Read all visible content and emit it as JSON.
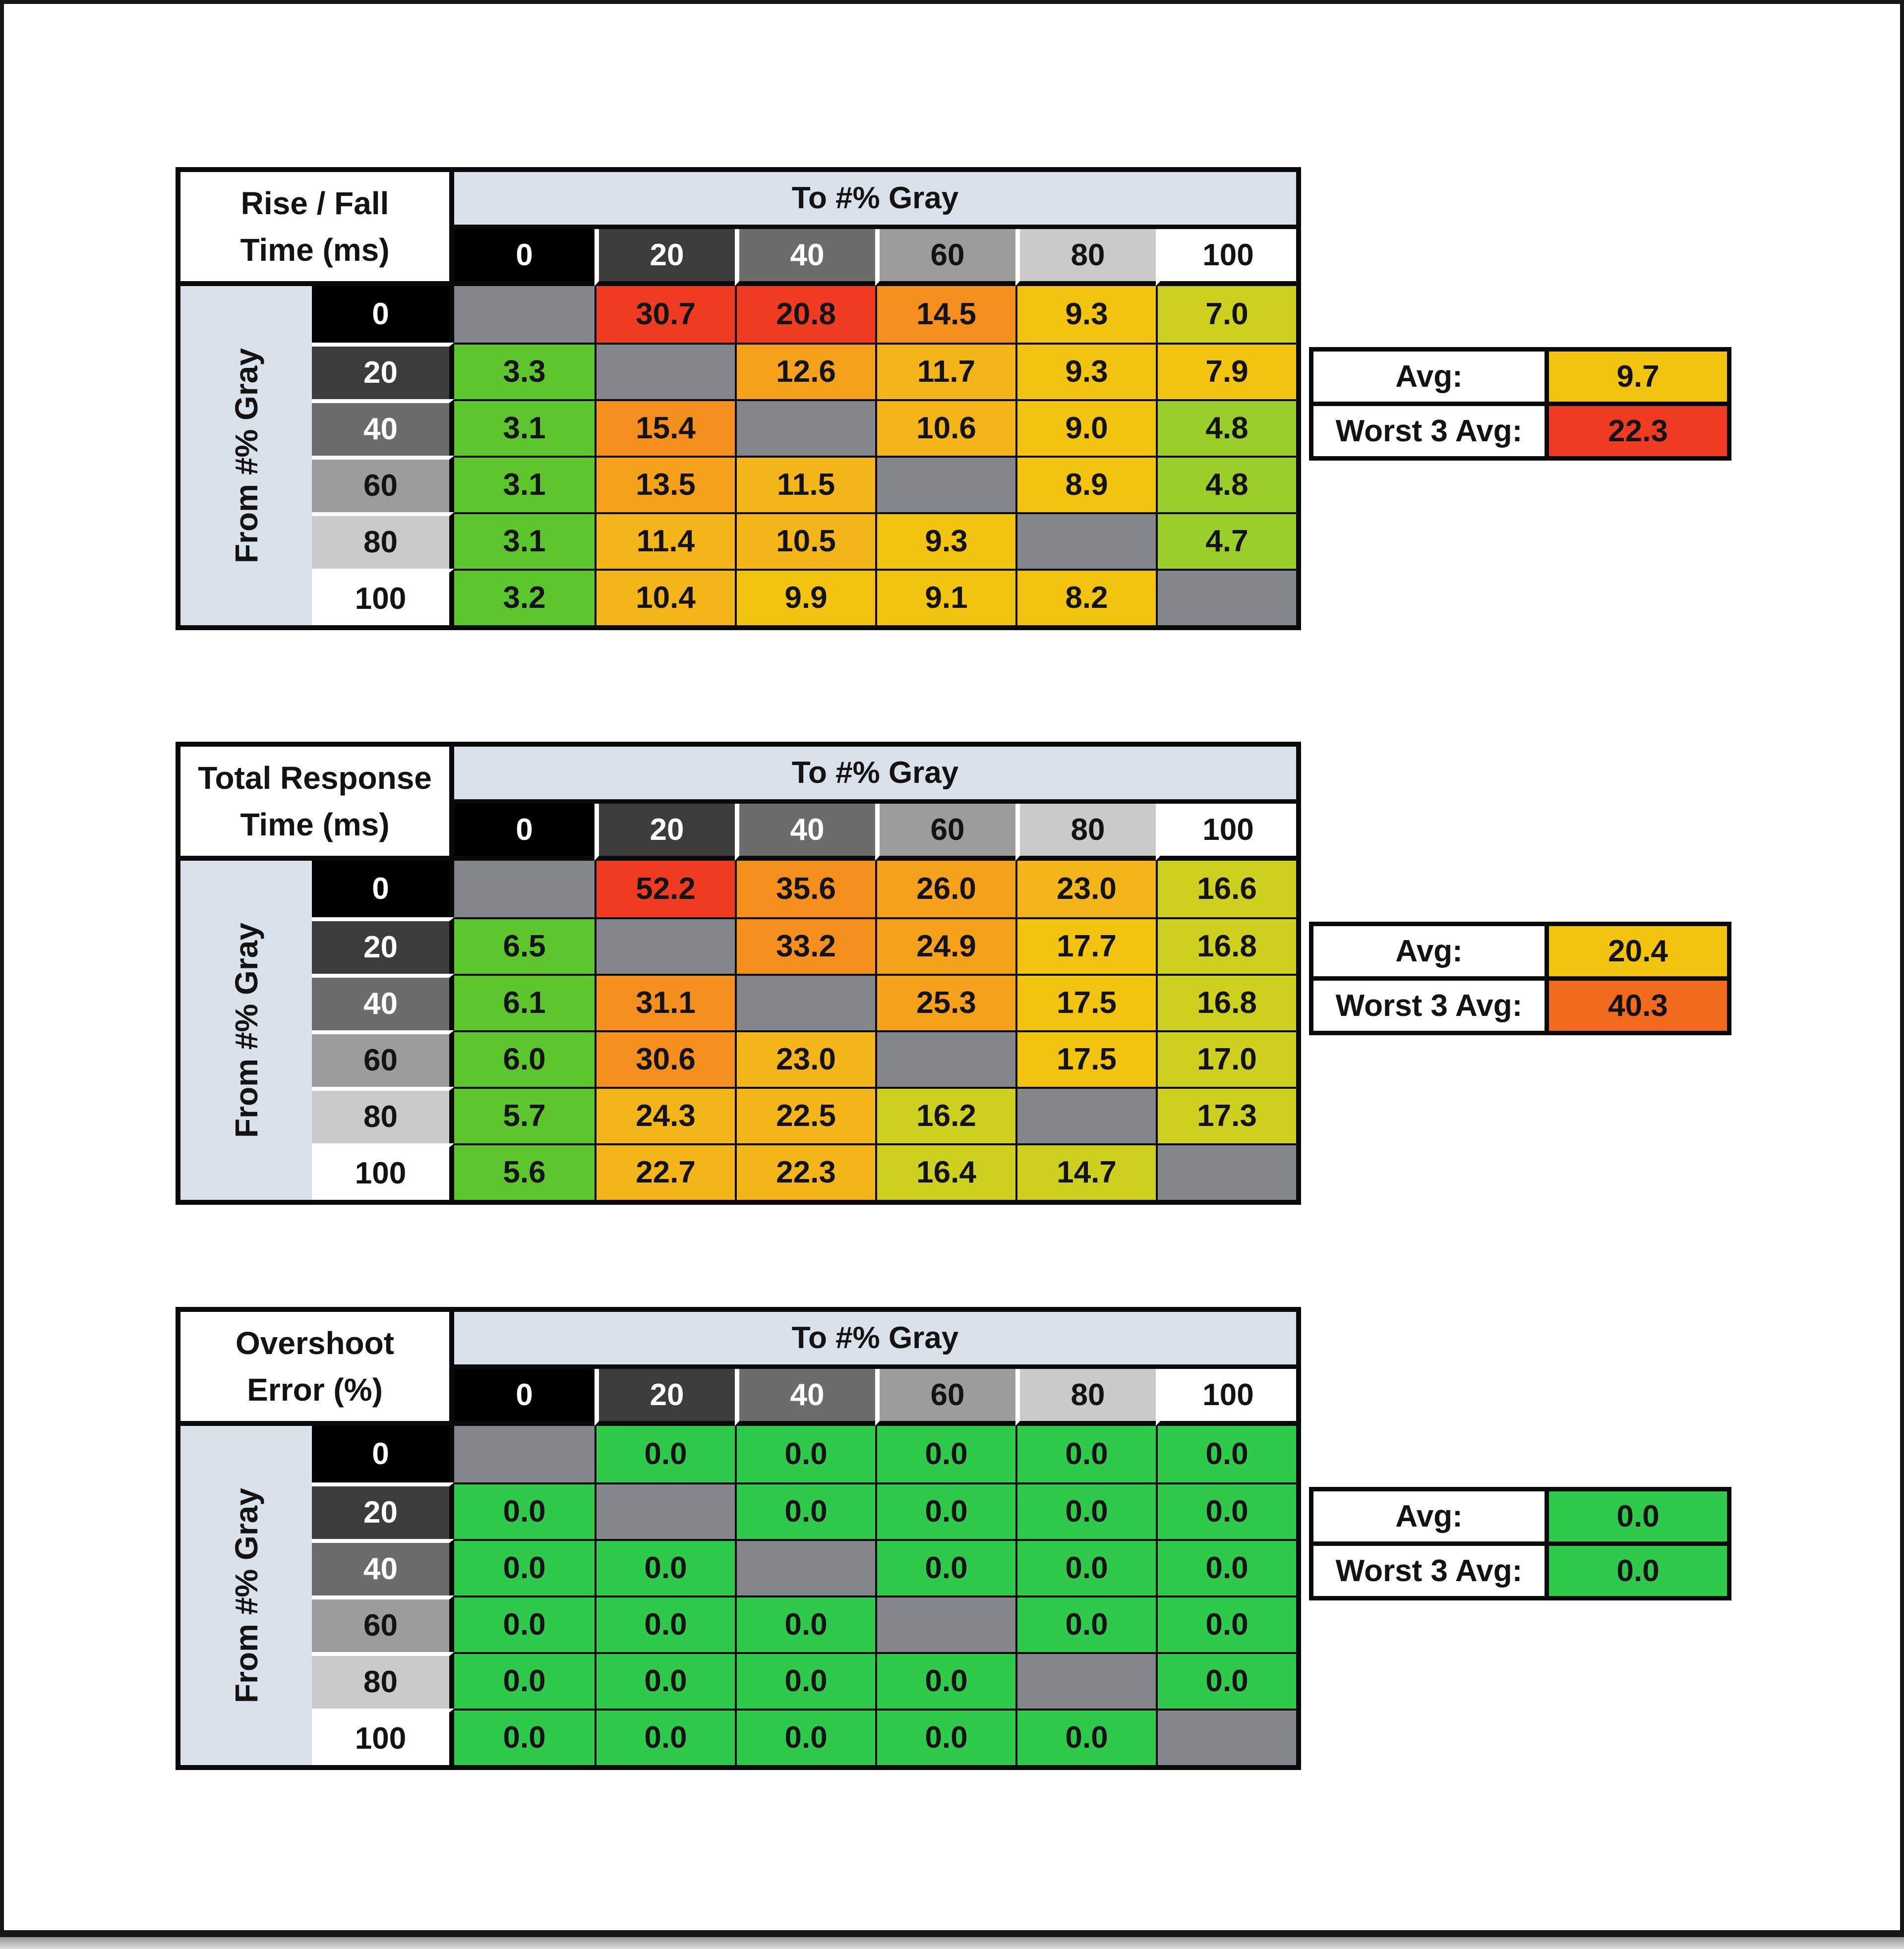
{
  "page": {
    "background": "#ffffff",
    "frame_color": "#161616",
    "bottom_strip_color": "#b8b8b8"
  },
  "axis": {
    "to_label": "To #% Gray",
    "from_label": "From #% Gray",
    "levels": [
      "0",
      "20",
      "40",
      "60",
      "80",
      "100"
    ]
  },
  "avg_labels": {
    "avg": "Avg:",
    "worst": "Worst 3 Avg:"
  },
  "palette": {
    "band": "#D9E2EA",
    "diagonal": "#85868C",
    "grid_line": "#0a0a0a",
    "header_shades": [
      "#000000",
      "#3C3C3C",
      "#6C6C6C",
      "#9C9C9C",
      "#CACACA",
      "#FFFFFF"
    ],
    "header_text_light_count": 3,
    "colors": {
      "green": "#5EC62D",
      "lightGreen": "#9CCE2B",
      "olive": "#CDD01F",
      "yellow": "#F2C40F",
      "gold": "#F3B51A",
      "amber": "#F5A11C",
      "orange": "#F58F1D",
      "deepOrange": "#F26A1E",
      "red": "#EF3B22",
      "emerald": "#2FC94C"
    }
  },
  "chart_data": [
    {
      "type": "heatmap",
      "title": "Rise / Fall Time (ms)",
      "title_lines": [
        "Rise / Fall",
        "Time (ms)"
      ],
      "xlabel": "To #% Gray",
      "ylabel": "From #% Gray",
      "categories": [
        0,
        20,
        40,
        60,
        80,
        100
      ],
      "matrix": [
        [
          null,
          30.7,
          20.8,
          14.5,
          9.3,
          7.0
        ],
        [
          3.3,
          null,
          12.6,
          11.7,
          9.3,
          7.9
        ],
        [
          3.1,
          15.4,
          null,
          10.6,
          9.0,
          4.8
        ],
        [
          3.1,
          13.5,
          11.5,
          null,
          8.9,
          4.8
        ],
        [
          3.1,
          11.4,
          10.5,
          9.3,
          null,
          4.7
        ],
        [
          3.2,
          10.4,
          9.9,
          9.1,
          8.2,
          null
        ]
      ],
      "cell_colors": [
        [
          null,
          "red",
          "red",
          "orange",
          "yellow",
          "olive"
        ],
        [
          "green",
          null,
          "amber",
          "gold",
          "yellow",
          "yellow"
        ],
        [
          "green",
          "orange",
          null,
          "gold",
          "yellow",
          "lightGreen"
        ],
        [
          "green",
          "amber",
          "gold",
          null,
          "yellow",
          "lightGreen"
        ],
        [
          "green",
          "gold",
          "gold",
          "yellow",
          null,
          "lightGreen"
        ],
        [
          "green",
          "gold",
          "yellow",
          "yellow",
          "yellow",
          null
        ]
      ],
      "avg": 9.7,
      "avg_color": "yellow",
      "worst3_avg": 22.3,
      "worst3_color": "red"
    },
    {
      "type": "heatmap",
      "title": "Total Response Time (ms)",
      "title_lines": [
        "Total Response",
        "Time (ms)"
      ],
      "xlabel": "To #% Gray",
      "ylabel": "From #% Gray",
      "categories": [
        0,
        20,
        40,
        60,
        80,
        100
      ],
      "matrix": [
        [
          null,
          52.2,
          35.6,
          26.0,
          23.0,
          16.6
        ],
        [
          6.5,
          null,
          33.2,
          24.9,
          17.7,
          16.8
        ],
        [
          6.1,
          31.1,
          null,
          25.3,
          17.5,
          16.8
        ],
        [
          6.0,
          30.6,
          23.0,
          null,
          17.5,
          17.0
        ],
        [
          5.7,
          24.3,
          22.5,
          16.2,
          null,
          17.3
        ],
        [
          5.6,
          22.7,
          22.3,
          16.4,
          14.7,
          null
        ]
      ],
      "cell_colors": [
        [
          null,
          "red",
          "orange",
          "amber",
          "gold",
          "olive"
        ],
        [
          "green",
          null,
          "orange",
          "amber",
          "yellow",
          "olive"
        ],
        [
          "green",
          "orange",
          null,
          "amber",
          "yellow",
          "olive"
        ],
        [
          "green",
          "orange",
          "gold",
          null,
          "yellow",
          "olive"
        ],
        [
          "green",
          "gold",
          "gold",
          "olive",
          null,
          "olive"
        ],
        [
          "green",
          "gold",
          "gold",
          "olive",
          "olive",
          null
        ]
      ],
      "avg": 20.4,
      "avg_color": "yellow",
      "worst3_avg": 40.3,
      "worst3_color": "deepOrange"
    },
    {
      "type": "heatmap",
      "title": "Overshoot Error (%)",
      "title_lines": [
        "Overshoot",
        "Error (%)"
      ],
      "xlabel": "To #% Gray",
      "ylabel": "From #% Gray",
      "categories": [
        0,
        20,
        40,
        60,
        80,
        100
      ],
      "matrix": [
        [
          null,
          0.0,
          0.0,
          0.0,
          0.0,
          0.0
        ],
        [
          0.0,
          null,
          0.0,
          0.0,
          0.0,
          0.0
        ],
        [
          0.0,
          0.0,
          null,
          0.0,
          0.0,
          0.0
        ],
        [
          0.0,
          0.0,
          0.0,
          null,
          0.0,
          0.0
        ],
        [
          0.0,
          0.0,
          0.0,
          0.0,
          null,
          0.0
        ],
        [
          0.0,
          0.0,
          0.0,
          0.0,
          0.0,
          null
        ]
      ],
      "cell_colors": [
        [
          null,
          "emerald",
          "emerald",
          "emerald",
          "emerald",
          "emerald"
        ],
        [
          "emerald",
          null,
          "emerald",
          "emerald",
          "emerald",
          "emerald"
        ],
        [
          "emerald",
          "emerald",
          null,
          "emerald",
          "emerald",
          "emerald"
        ],
        [
          "emerald",
          "emerald",
          "emerald",
          null,
          "emerald",
          "emerald"
        ],
        [
          "emerald",
          "emerald",
          "emerald",
          "emerald",
          null,
          "emerald"
        ],
        [
          "emerald",
          "emerald",
          "emerald",
          "emerald",
          "emerald",
          null
        ]
      ],
      "avg": 0.0,
      "avg_color": "emerald",
      "worst3_avg": 0.0,
      "worst3_color": "emerald"
    }
  ]
}
